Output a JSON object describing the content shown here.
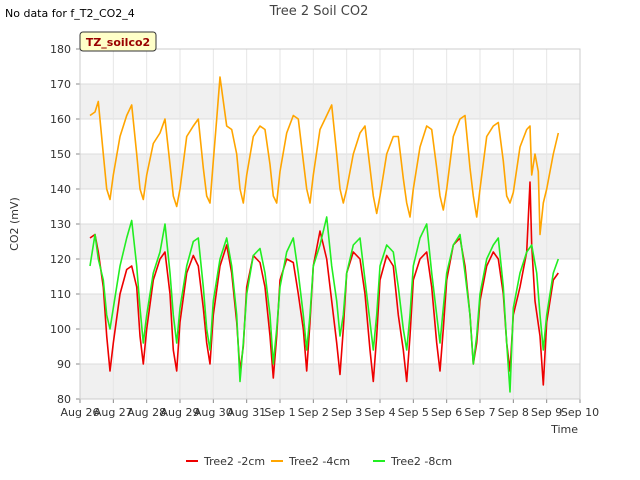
{
  "note": "No data for f_T2_CO2_4",
  "chart_data": {
    "type": "line",
    "title": "Tree 2 Soil CO2",
    "xlabel": "Time",
    "ylabel": "CO2 (mV)",
    "badge": "TZ_soilco2",
    "ylim": [
      80,
      180
    ],
    "yticks": [
      80,
      90,
      100,
      110,
      120,
      130,
      140,
      150,
      160,
      170,
      180
    ],
    "xlim": [
      0,
      15
    ],
    "xtick_labels": [
      "Aug 26",
      "Aug 27",
      "Aug 28",
      "Aug 29",
      "Aug 30",
      "Aug 31",
      "Sep 1",
      "Sep 2",
      "Sep 3",
      "Sep 4",
      "Sep 5",
      "Sep 6",
      "Sep 7",
      "Sep 8",
      "Sep 9",
      "Sep 10"
    ],
    "legend_position": "bottom-center",
    "grid": true,
    "series": [
      {
        "name": "Tree2 -2cm",
        "color": "#ee0000",
        "x": [
          0.3,
          0.45,
          0.55,
          0.7,
          0.8,
          0.9,
          1.0,
          1.2,
          1.4,
          1.55,
          1.7,
          1.8,
          1.9,
          2.0,
          2.2,
          2.4,
          2.55,
          2.7,
          2.8,
          2.9,
          3.0,
          3.2,
          3.4,
          3.55,
          3.7,
          3.8,
          3.9,
          4.0,
          4.2,
          4.4,
          4.55,
          4.7,
          4.8,
          4.9,
          5.0,
          5.2,
          5.4,
          5.55,
          5.7,
          5.8,
          5.9,
          6.0,
          6.2,
          6.4,
          6.55,
          6.7,
          6.8,
          6.9,
          7.0,
          7.2,
          7.4,
          7.55,
          7.7,
          7.8,
          7.9,
          8.0,
          8.2,
          8.4,
          8.55,
          8.7,
          8.8,
          8.9,
          9.0,
          9.2,
          9.4,
          9.55,
          9.7,
          9.8,
          9.9,
          10.0,
          10.2,
          10.4,
          10.55,
          10.7,
          10.8,
          10.9,
          11.0,
          11.2,
          11.4,
          11.55,
          11.7,
          11.8,
          11.9,
          12.0,
          12.2,
          12.4,
          12.55,
          12.7,
          12.8,
          12.9,
          13.0,
          13.2,
          13.4,
          13.5,
          13.55,
          13.65,
          13.8,
          13.9,
          14.0,
          14.2,
          14.35
        ],
        "values": [
          126,
          127,
          122,
          112,
          98,
          88,
          96,
          110,
          117,
          118,
          112,
          98,
          90,
          100,
          114,
          120,
          122,
          110,
          94,
          88,
          102,
          116,
          121,
          118,
          106,
          96,
          90,
          104,
          118,
          124,
          116,
          102,
          88,
          95,
          112,
          121,
          119,
          112,
          98,
          86,
          98,
          114,
          120,
          119,
          110,
          100,
          88,
          102,
          118,
          128,
          120,
          108,
          96,
          87,
          100,
          116,
          122,
          120,
          110,
          94,
          85,
          98,
          114,
          121,
          118,
          104,
          94,
          85,
          98,
          114,
          120,
          122,
          112,
          96,
          88,
          100,
          114,
          124,
          126,
          118,
          104,
          90,
          96,
          108,
          118,
          122,
          120,
          110,
          96,
          88,
          104,
          112,
          122,
          142,
          124,
          108,
          98,
          84,
          102,
          114,
          116
        ]
      },
      {
        "name": "Tree2 -4cm",
        "color": "#ffa500",
        "x": [
          0.3,
          0.45,
          0.55,
          0.7,
          0.8,
          0.9,
          1.0,
          1.2,
          1.4,
          1.55,
          1.7,
          1.8,
          1.9,
          2.0,
          2.2,
          2.4,
          2.55,
          2.7,
          2.8,
          2.9,
          3.0,
          3.2,
          3.4,
          3.55,
          3.7,
          3.8,
          3.9,
          4.0,
          4.1,
          4.2,
          4.4,
          4.55,
          4.7,
          4.8,
          4.9,
          5.0,
          5.2,
          5.4,
          5.55,
          5.7,
          5.8,
          5.9,
          6.0,
          6.2,
          6.4,
          6.55,
          6.7,
          6.8,
          6.9,
          7.0,
          7.2,
          7.4,
          7.55,
          7.7,
          7.8,
          7.9,
          8.0,
          8.2,
          8.4,
          8.55,
          8.7,
          8.8,
          8.9,
          9.0,
          9.2,
          9.4,
          9.55,
          9.7,
          9.8,
          9.9,
          10.0,
          10.2,
          10.4,
          10.55,
          10.7,
          10.8,
          10.9,
          11.0,
          11.2,
          11.4,
          11.55,
          11.7,
          11.8,
          11.9,
          12.0,
          12.2,
          12.4,
          12.55,
          12.7,
          12.8,
          12.9,
          13.0,
          13.2,
          13.4,
          13.5,
          13.55,
          13.65,
          13.75,
          13.8,
          13.9,
          14.0,
          14.2,
          14.35
        ],
        "values": [
          161,
          162,
          165,
          150,
          140,
          137,
          144,
          155,
          161,
          164,
          150,
          140,
          137,
          144,
          153,
          156,
          160,
          147,
          138,
          135,
          140,
          155,
          158,
          160,
          146,
          138,
          136,
          148,
          160,
          172,
          158,
          157,
          150,
          140,
          136,
          144,
          155,
          158,
          157,
          147,
          138,
          136,
          145,
          156,
          161,
          160,
          148,
          140,
          136,
          144,
          157,
          161,
          164,
          150,
          140,
          136,
          140,
          150,
          156,
          158,
          146,
          138,
          133,
          138,
          150,
          155,
          155,
          143,
          136,
          132,
          140,
          152,
          158,
          157,
          146,
          138,
          134,
          140,
          155,
          160,
          161,
          146,
          138,
          132,
          140,
          155,
          158,
          159,
          148,
          138,
          136,
          139,
          152,
          157,
          158,
          144,
          150,
          145,
          127,
          136,
          140,
          150,
          156
        ]
      },
      {
        "name": "Tree2 -8cm",
        "color": "#22ee22",
        "x": [
          0.3,
          0.45,
          0.55,
          0.7,
          0.8,
          0.9,
          1.0,
          1.2,
          1.4,
          1.55,
          1.7,
          1.8,
          1.9,
          2.0,
          2.2,
          2.4,
          2.55,
          2.7,
          2.8,
          2.9,
          3.0,
          3.2,
          3.4,
          3.55,
          3.7,
          3.8,
          3.9,
          4.0,
          4.2,
          4.4,
          4.55,
          4.7,
          4.8,
          4.9,
          5.0,
          5.2,
          5.4,
          5.55,
          5.7,
          5.8,
          5.9,
          6.0,
          6.2,
          6.4,
          6.55,
          6.7,
          6.8,
          6.9,
          7.0,
          7.2,
          7.4,
          7.55,
          7.7,
          7.8,
          7.9,
          8.0,
          8.2,
          8.4,
          8.55,
          8.7,
          8.8,
          8.9,
          9.0,
          9.2,
          9.4,
          9.55,
          9.7,
          9.8,
          9.9,
          10.0,
          10.2,
          10.4,
          10.55,
          10.7,
          10.8,
          10.9,
          11.0,
          11.2,
          11.4,
          11.55,
          11.7,
          11.8,
          11.9,
          12.0,
          12.2,
          12.4,
          12.55,
          12.7,
          12.8,
          12.9,
          13.0,
          13.2,
          13.4,
          13.55,
          13.7,
          13.8,
          13.9,
          14.0,
          14.2,
          14.35
        ],
        "values": [
          118,
          127,
          120,
          114,
          104,
          100,
          106,
          118,
          126,
          131,
          118,
          106,
          96,
          104,
          116,
          122,
          130,
          116,
          104,
          96,
          106,
          118,
          125,
          126,
          112,
          100,
          94,
          108,
          120,
          126,
          118,
          104,
          85,
          96,
          110,
          121,
          123,
          116,
          104,
          90,
          100,
          112,
          122,
          126,
          116,
          104,
          94,
          104,
          118,
          124,
          132,
          118,
          108,
          98,
          104,
          116,
          124,
          126,
          114,
          102,
          94,
          104,
          118,
          124,
          122,
          112,
          100,
          94,
          104,
          118,
          126,
          130,
          116,
          104,
          96,
          106,
          116,
          124,
          127,
          116,
          104,
          90,
          98,
          110,
          120,
          124,
          126,
          112,
          96,
          82,
          106,
          116,
          122,
          124,
          116,
          104,
          94,
          104,
          116,
          120
        ]
      }
    ]
  }
}
